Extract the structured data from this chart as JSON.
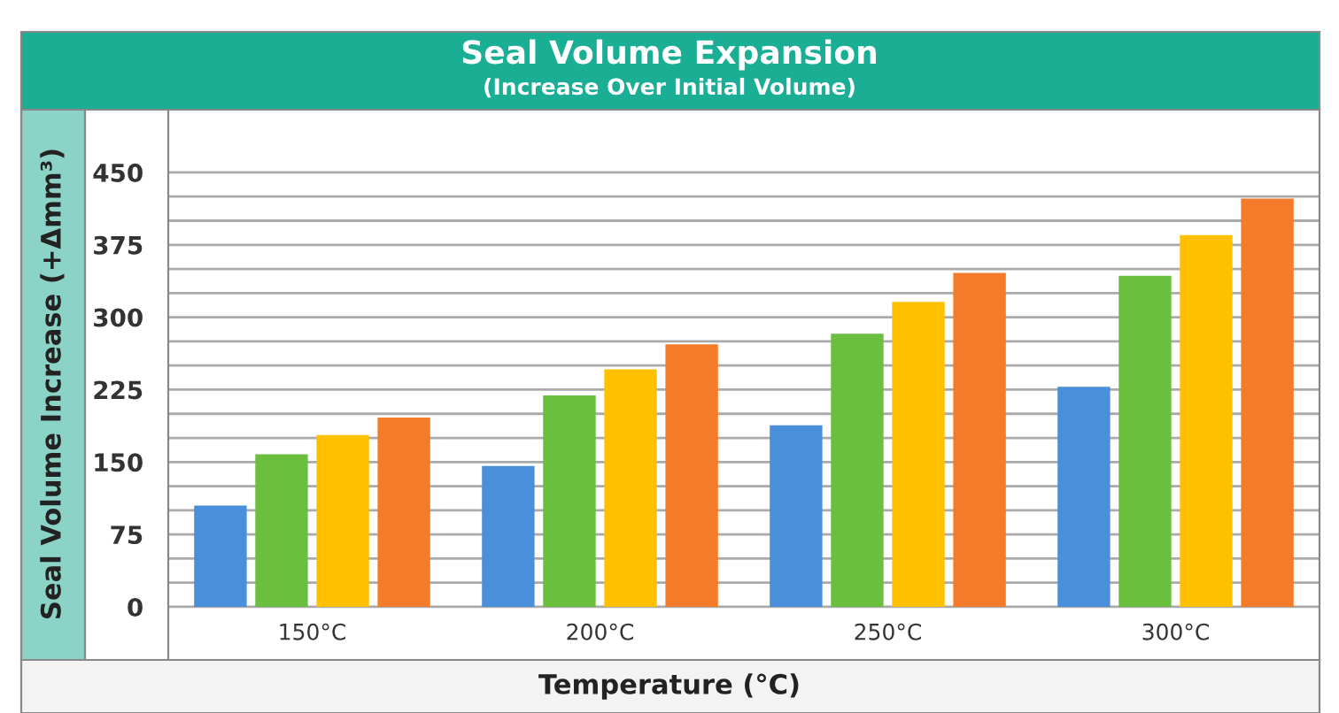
{
  "chart_data": {
    "type": "bar",
    "title": "Seal Volume Expansion",
    "subtitle": "(Increase Over Initial Volume)",
    "xlabel": "Temperature (°C)",
    "ylabel": "Seal Volume Increase (+Δmm³)",
    "categories": [
      "150°C",
      "200°C",
      "250°C",
      "300°C"
    ],
    "series": [
      {
        "color": "#4a8fd9",
        "values": [
          105,
          146,
          188,
          228
        ]
      },
      {
        "color": "#6abf3f",
        "values": [
          158,
          219,
          283,
          343
        ]
      },
      {
        "color": "#ffc000",
        "values": [
          178,
          246,
          316,
          385
        ]
      },
      {
        "color": "#f47b2a",
        "values": [
          196,
          272,
          346,
          423
        ]
      }
    ],
    "ylim": [
      -55,
      515
    ],
    "yticks": [
      0,
      {
        "value": 25,
        "label": null
      },
      {
        "value": 50,
        "label": null
      },
      75,
      {
        "value": 100,
        "label": null
      },
      {
        "value": 125,
        "label": null
      },
      150,
      {
        "value": 175,
        "label": null
      },
      {
        "value": 200,
        "label": null
      },
      225,
      {
        "value": 250,
        "label": null
      },
      {
        "value": 275,
        "label": null
      },
      300,
      {
        "value": 325,
        "label": null
      },
      {
        "value": 350,
        "label": null
      },
      375,
      {
        "value": 400,
        "label": null
      },
      {
        "value": 425,
        "label": null
      },
      450
    ],
    "grid": "y"
  }
}
